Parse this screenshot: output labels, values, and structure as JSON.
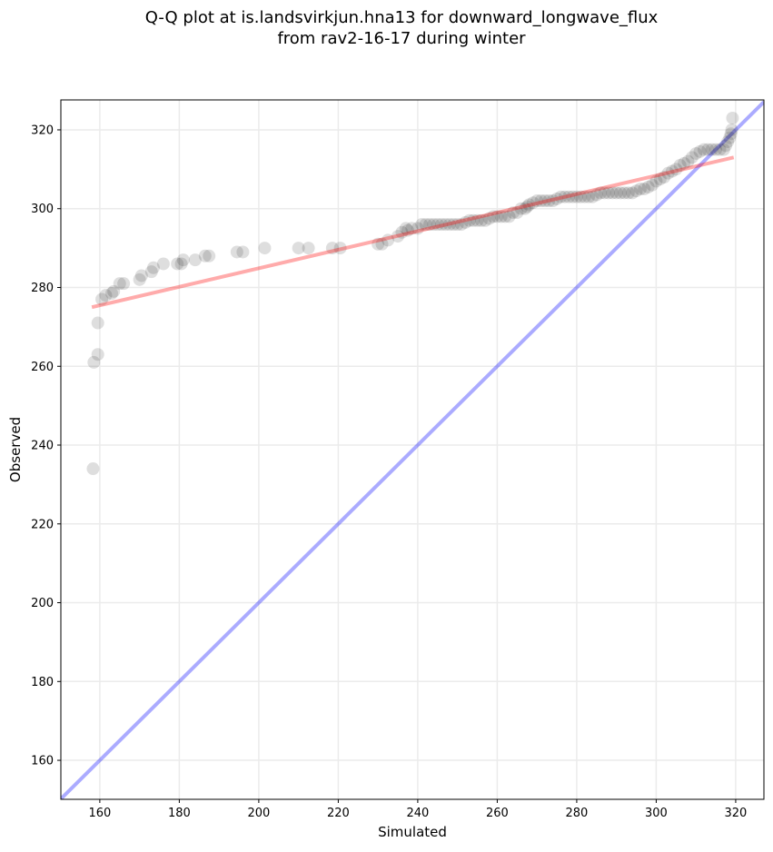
{
  "chart_data": {
    "type": "scatter",
    "title": [
      "Q-Q plot at is.landsvirkjun.hna13 for downward_longwave_flux",
      "from rav2-16-17 during winter"
    ],
    "xlabel": "Simulated",
    "ylabel": "Observed",
    "xlim": [
      150.2,
      327.1
    ],
    "ylim": [
      150.1,
      327.6
    ],
    "xticks": [
      160,
      180,
      200,
      220,
      240,
      260,
      280,
      300,
      320
    ],
    "yticks": [
      160,
      180,
      200,
      220,
      240,
      260,
      280,
      300,
      320
    ],
    "grid": true,
    "colors": {
      "points": "#000000",
      "fit": "#ff0000",
      "identity": "#0000ff"
    },
    "fit_line": {
      "x": [
        158,
        319.5
      ],
      "y": [
        275,
        313
      ]
    },
    "identity_line": {
      "x": [
        150.2,
        327.1
      ],
      "y": [
        150.2,
        327.1
      ]
    },
    "points": [
      [
        158.3,
        234
      ],
      [
        158.5,
        261
      ],
      [
        159.5,
        263
      ],
      [
        159.5,
        271
      ],
      [
        160.5,
        277
      ],
      [
        161.5,
        278
      ],
      [
        163,
        278.5
      ],
      [
        163.5,
        279
      ],
      [
        165,
        281
      ],
      [
        166,
        281
      ],
      [
        170,
        282
      ],
      [
        170.5,
        283
      ],
      [
        173,
        284
      ],
      [
        173.5,
        285
      ],
      [
        176,
        286
      ],
      [
        179.5,
        286
      ],
      [
        180.5,
        286
      ],
      [
        181,
        287
      ],
      [
        184,
        287
      ],
      [
        186.5,
        288
      ],
      [
        187.5,
        288
      ],
      [
        194.5,
        289
      ],
      [
        196,
        289
      ],
      [
        201.5,
        290
      ],
      [
        210,
        290
      ],
      [
        212.5,
        290
      ],
      [
        218.5,
        290
      ],
      [
        220.5,
        290
      ],
      [
        230,
        291
      ],
      [
        231,
        291
      ],
      [
        232.5,
        292
      ],
      [
        235,
        293
      ],
      [
        236,
        294
      ],
      [
        237,
        295
      ],
      [
        237.5,
        294.5
      ],
      [
        238.5,
        295
      ],
      [
        240,
        295
      ],
      [
        241,
        296
      ],
      [
        242,
        296
      ],
      [
        243,
        296
      ],
      [
        244,
        296
      ],
      [
        245,
        296
      ],
      [
        246,
        296
      ],
      [
        247,
        296
      ],
      [
        248,
        296
      ],
      [
        249,
        296
      ],
      [
        250,
        296
      ],
      [
        251,
        296
      ],
      [
        252,
        296.5
      ],
      [
        253,
        297
      ],
      [
        254,
        297
      ],
      [
        255,
        297
      ],
      [
        256,
        297
      ],
      [
        257,
        297
      ],
      [
        258,
        297.5
      ],
      [
        259,
        298
      ],
      [
        260,
        298
      ],
      [
        261,
        298
      ],
      [
        262,
        298
      ],
      [
        263,
        298
      ],
      [
        264,
        299
      ],
      [
        265,
        299
      ],
      [
        266,
        300
      ],
      [
        267,
        300
      ],
      [
        267.5,
        300.5
      ],
      [
        268,
        301
      ],
      [
        269,
        301.5
      ],
      [
        270,
        302
      ],
      [
        271,
        302
      ],
      [
        272,
        302
      ],
      [
        273,
        302
      ],
      [
        274,
        302
      ],
      [
        275,
        302.5
      ],
      [
        276,
        303
      ],
      [
        277,
        303
      ],
      [
        278,
        303
      ],
      [
        279,
        303
      ],
      [
        280,
        303
      ],
      [
        281,
        303
      ],
      [
        282,
        303
      ],
      [
        283,
        303
      ],
      [
        284,
        303
      ],
      [
        285,
        303.5
      ],
      [
        286,
        304
      ],
      [
        287,
        304
      ],
      [
        288,
        304
      ],
      [
        289,
        304
      ],
      [
        290,
        304
      ],
      [
        291,
        304
      ],
      [
        292,
        304
      ],
      [
        293,
        304
      ],
      [
        294,
        304
      ],
      [
        295,
        304.5
      ],
      [
        296,
        305
      ],
      [
        297,
        305
      ],
      [
        298,
        305.5
      ],
      [
        299,
        306
      ],
      [
        300,
        307
      ],
      [
        301,
        307.5
      ],
      [
        302,
        308
      ],
      [
        303,
        309
      ],
      [
        304,
        309.5
      ],
      [
        305,
        310
      ],
      [
        306,
        311
      ],
      [
        307,
        311.5
      ],
      [
        308,
        312
      ],
      [
        309,
        313
      ],
      [
        310,
        314
      ],
      [
        311,
        314.5
      ],
      [
        312,
        315
      ],
      [
        313,
        315
      ],
      [
        314,
        315
      ],
      [
        315,
        315
      ],
      [
        316,
        315
      ],
      [
        317,
        315
      ],
      [
        317.5,
        316
      ],
      [
        318,
        317
      ],
      [
        318.5,
        318
      ],
      [
        318.8,
        319
      ],
      [
        319,
        320
      ],
      [
        319.2,
        323
      ]
    ]
  }
}
